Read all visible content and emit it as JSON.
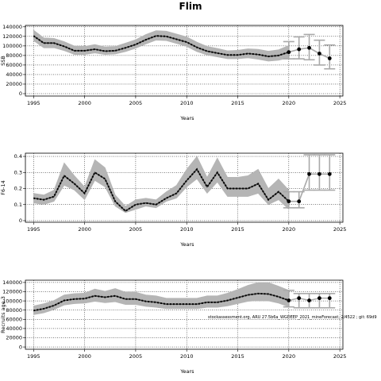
{
  "title": "Flim",
  "chart_data": [
    {
      "type": "line",
      "ylabel": "SSB",
      "xlabel": "Years",
      "xlim": [
        1994.2,
        2025.3
      ],
      "ylim": [
        -5000,
        143000
      ],
      "xticks": [
        1995,
        2000,
        2005,
        2010,
        2015,
        2020,
        2025
      ],
      "yticks": [
        0,
        20000,
        40000,
        60000,
        80000,
        100000,
        120000,
        140000
      ],
      "grid": "dotted",
      "note": "",
      "series": [
        {
          "x": [
            1995,
            1996,
            1997,
            1998,
            1999,
            2000,
            2001,
            2002,
            2003,
            2004,
            2005,
            2006,
            2007,
            2008,
            2009,
            2010,
            2011,
            2012,
            2013,
            2014,
            2015,
            2016,
            2017,
            2018,
            2019,
            2020
          ],
          "estimate": [
            121000,
            106000,
            106000,
            99000,
            90000,
            90000,
            93000,
            89000,
            90000,
            96000,
            103000,
            113000,
            121000,
            120000,
            114000,
            108000,
            97000,
            89000,
            85000,
            81000,
            81000,
            84000,
            82000,
            78000,
            80000,
            87000
          ],
          "low": [
            111000,
            96000,
            96000,
            90000,
            82000,
            82000,
            85000,
            82000,
            83000,
            88000,
            95000,
            104000,
            112000,
            111000,
            105000,
            99000,
            88000,
            81000,
            77000,
            73000,
            73000,
            75000,
            72000,
            68000,
            70000,
            75000
          ],
          "high": [
            133000,
            117000,
            116000,
            109000,
            100000,
            99000,
            103000,
            98000,
            99000,
            106000,
            113000,
            124000,
            132000,
            131000,
            125000,
            119000,
            108000,
            99000,
            95000,
            90000,
            91000,
            94000,
            93000,
            89000,
            92000,
            101000
          ]
        }
      ],
      "forecast": [
        {
          "x": 2020,
          "value": 87000,
          "low": 73000,
          "high": 109000
        },
        {
          "x": 2021,
          "value": 93000,
          "low": 73000,
          "high": 119000
        },
        {
          "x": 2022,
          "value": 96000,
          "low": 71000,
          "high": 124000
        },
        {
          "x": 2023,
          "value": 84000,
          "low": 60000,
          "high": 112000
        },
        {
          "x": 2024,
          "value": 74000,
          "low": 52000,
          "high": 102000
        }
      ]
    },
    {
      "type": "line",
      "ylabel": "F6-14",
      "xlabel": "Years",
      "xlim": [
        1994.2,
        2025.3
      ],
      "ylim": [
        -0.01,
        0.42
      ],
      "xticks": [
        1995,
        2000,
        2005,
        2010,
        2015,
        2020,
        2025
      ],
      "yticks": [
        0,
        0.1,
        0.2,
        0.3,
        0.4
      ],
      "grid": "dotted",
      "note": "",
      "series": [
        {
          "x": [
            1995,
            1996,
            1997,
            1998,
            1999,
            2000,
            2001,
            2002,
            2003,
            2004,
            2005,
            2006,
            2007,
            2008,
            2009,
            2010,
            2011,
            2012,
            2013,
            2014,
            2015,
            2016,
            2017,
            2018,
            2019,
            2020
          ],
          "estimate": [
            0.14,
            0.13,
            0.15,
            0.28,
            0.23,
            0.17,
            0.3,
            0.26,
            0.12,
            0.06,
            0.1,
            0.11,
            0.1,
            0.14,
            0.17,
            0.25,
            0.32,
            0.21,
            0.3,
            0.2,
            0.2,
            0.2,
            0.23,
            0.13,
            0.18,
            0.12
          ],
          "low": [
            0.11,
            0.1,
            0.12,
            0.22,
            0.19,
            0.13,
            0.25,
            0.21,
            0.09,
            0.05,
            0.07,
            0.09,
            0.08,
            0.12,
            0.14,
            0.21,
            0.26,
            0.17,
            0.24,
            0.15,
            0.15,
            0.15,
            0.17,
            0.1,
            0.13,
            0.07
          ],
          "high": [
            0.17,
            0.16,
            0.19,
            0.36,
            0.28,
            0.21,
            0.38,
            0.33,
            0.16,
            0.09,
            0.13,
            0.14,
            0.13,
            0.18,
            0.22,
            0.32,
            0.4,
            0.27,
            0.39,
            0.27,
            0.27,
            0.28,
            0.32,
            0.2,
            0.26,
            0.19
          ]
        }
      ],
      "forecast": [
        {
          "x": 2020,
          "value": 0.12,
          "low": 0.08,
          "high": 0.18
        },
        {
          "x": 2021,
          "value": 0.12,
          "low": 0.08,
          "high": 0.18
        },
        {
          "x": 2022,
          "value": 0.29,
          "low": 0.19,
          "high": 0.41
        },
        {
          "x": 2023,
          "value": 0.29,
          "low": 0.19,
          "high": 0.41
        },
        {
          "x": 2024,
          "value": 0.29,
          "low": 0.19,
          "high": 0.41
        }
      ]
    },
    {
      "type": "line",
      "ylabel": "Recruits age 3",
      "xlabel": "Years",
      "xlim": [
        1994.2,
        2025.3
      ],
      "ylim": [
        -5000,
        145000
      ],
      "xticks": [
        1995,
        2000,
        2005,
        2010,
        2015,
        2020,
        2025
      ],
      "yticks": [
        0,
        20000,
        40000,
        60000,
        80000,
        100000,
        120000,
        140000
      ],
      "grid": "dotted",
      "note": "stockassessment.org, ARU 27.5b6a_WGDEEP_2021_mineForecast, 2/4522 ; git: 69d9",
      "series": [
        {
          "x": [
            1995,
            1996,
            1997,
            1998,
            1999,
            2000,
            2001,
            2002,
            2003,
            2004,
            2005,
            2006,
            2007,
            2008,
            2009,
            2010,
            2011,
            2012,
            2013,
            2014,
            2015,
            2016,
            2017,
            2018,
            2019,
            2020
          ],
          "estimate": [
            79000,
            83000,
            90000,
            101000,
            104000,
            105000,
            111000,
            108000,
            111000,
            104000,
            104000,
            99000,
            97000,
            93000,
            93000,
            93000,
            93000,
            97000,
            97000,
            101000,
            107000,
            113000,
            116000,
            115000,
            109000,
            101000
          ],
          "low": [
            70000,
            74000,
            81000,
            91000,
            94000,
            95000,
            99000,
            96000,
            98000,
            92000,
            92000,
            88000,
            86000,
            83000,
            83000,
            83000,
            83000,
            86000,
            86000,
            89000,
            94000,
            99000,
            101000,
            100000,
            95000,
            87000
          ],
          "high": [
            89000,
            94000,
            101000,
            113000,
            116000,
            117000,
            126000,
            121000,
            127000,
            119000,
            119000,
            113000,
            111000,
            106000,
            106000,
            106000,
            106000,
            111000,
            111000,
            117000,
            125000,
            134000,
            140000,
            140000,
            132000,
            123000
          ]
        }
      ],
      "forecast": [
        {
          "x": 2020,
          "value": 101000,
          "low": 87000,
          "high": 123000
        },
        {
          "x": 2021,
          "value": 106000,
          "low": 85000,
          "high": 116000
        },
        {
          "x": 2022,
          "value": 101000,
          "low": 85000,
          "high": 116000
        },
        {
          "x": 2023,
          "value": 106000,
          "low": 85000,
          "high": 116000
        },
        {
          "x": 2024,
          "value": 106000,
          "low": 85000,
          "high": 116000
        }
      ]
    }
  ],
  "colors": {
    "band": "#b5b5b5",
    "estimate_line": "#000000",
    "forecast_line": "#a9a9a9",
    "forecast_point": "#000000"
  }
}
